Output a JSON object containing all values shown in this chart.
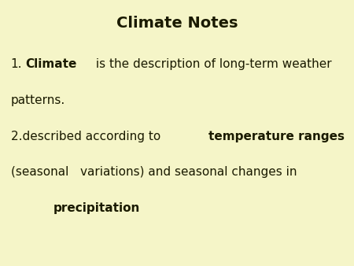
{
  "title": "Climate Notes",
  "background_color": "#f5f5c8",
  "text_color": "#1a1a00",
  "title_fontsize": 14,
  "body_fontsize": 11,
  "line1_part1": "1.",
  "line1_bold": "Climate",
  "line1_rest": " is the description of long-term weather",
  "line2": "patterns.",
  "line3_part1": "2.described according to ",
  "line3_bold": "temperature ranges",
  "line4": "(seasonal   variations) and seasonal changes in",
  "line5_bold": "precipitation",
  "line5_indent": 0.12
}
